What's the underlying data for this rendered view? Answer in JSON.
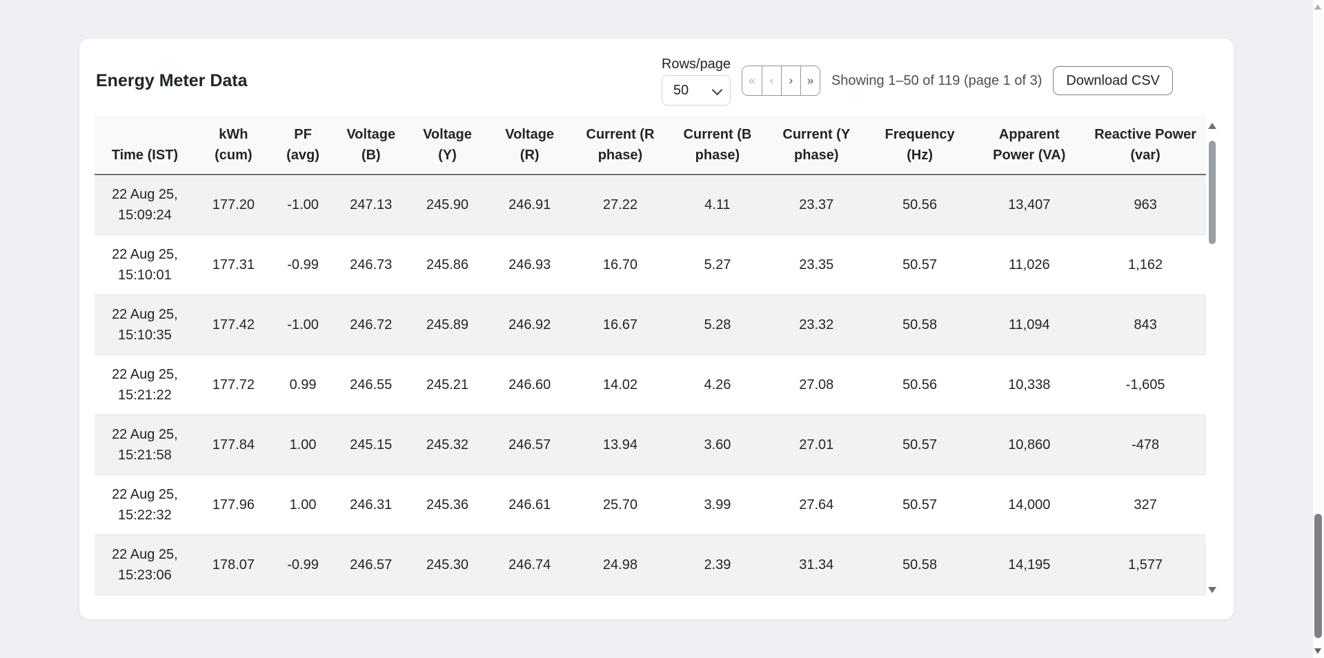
{
  "card": {
    "title": "Energy Meter Data",
    "controls": {
      "rows_per_page_label": "Rows/page",
      "rows_per_page_value": "50",
      "pager_buttons": [
        {
          "name": "first-page",
          "glyph": "«",
          "disabled": true
        },
        {
          "name": "prev-page",
          "glyph": "‹",
          "disabled": true
        },
        {
          "name": "next-page",
          "glyph": "›",
          "disabled": false
        },
        {
          "name": "last-page",
          "glyph": "»",
          "disabled": false
        }
      ],
      "showing_text": "Showing 1–50 of 119 (page 1 of 3)",
      "download_label": "Download CSV"
    },
    "table": {
      "columns": [
        "Time (IST)",
        "kWh (cum)",
        "PF (avg)",
        "Voltage (B)",
        "Voltage (Y)",
        "Voltage (R)",
        "Current (R phase)",
        "Current (B phase)",
        "Current (Y phase)",
        "Frequency (Hz)",
        "Apparent Power (VA)",
        "Reactive Power (var)"
      ],
      "rows": [
        [
          "22 Aug 25, 15:09:24",
          "177.20",
          "-1.00",
          "247.13",
          "245.90",
          "246.91",
          "27.22",
          "4.11",
          "23.37",
          "50.56",
          "13,407",
          "963"
        ],
        [
          "22 Aug 25, 15:10:01",
          "177.31",
          "-0.99",
          "246.73",
          "245.86",
          "246.93",
          "16.70",
          "5.27",
          "23.35",
          "50.57",
          "11,026",
          "1,162"
        ],
        [
          "22 Aug 25, 15:10:35",
          "177.42",
          "-1.00",
          "246.72",
          "245.89",
          "246.92",
          "16.67",
          "5.28",
          "23.32",
          "50.58",
          "11,094",
          "843"
        ],
        [
          "22 Aug 25, 15:21:22",
          "177.72",
          "0.99",
          "246.55",
          "245.21",
          "246.60",
          "14.02",
          "4.26",
          "27.08",
          "50.56",
          "10,338",
          "-1,605"
        ],
        [
          "22 Aug 25, 15:21:58",
          "177.84",
          "1.00",
          "245.15",
          "245.32",
          "246.57",
          "13.94",
          "3.60",
          "27.01",
          "50.57",
          "10,860",
          "-478"
        ],
        [
          "22 Aug 25, 15:22:32",
          "177.96",
          "1.00",
          "246.31",
          "245.36",
          "246.61",
          "25.70",
          "3.99",
          "27.64",
          "50.57",
          "14,000",
          "327"
        ],
        [
          "22 Aug 25, 15:23:06",
          "178.07",
          "-0.99",
          "246.57",
          "245.30",
          "246.74",
          "24.98",
          "2.39",
          "31.34",
          "50.58",
          "14,195",
          "1,577"
        ]
      ]
    }
  },
  "colors": {
    "page_background": "#eef0f3",
    "card_background": "#ffffff",
    "row_stripe": "#f2f2f2",
    "header_background": "#f8f9fa",
    "header_border": "#667078",
    "row_border": "#dee2e6",
    "text_primary": "#212529",
    "text_secondary": "#495057"
  }
}
